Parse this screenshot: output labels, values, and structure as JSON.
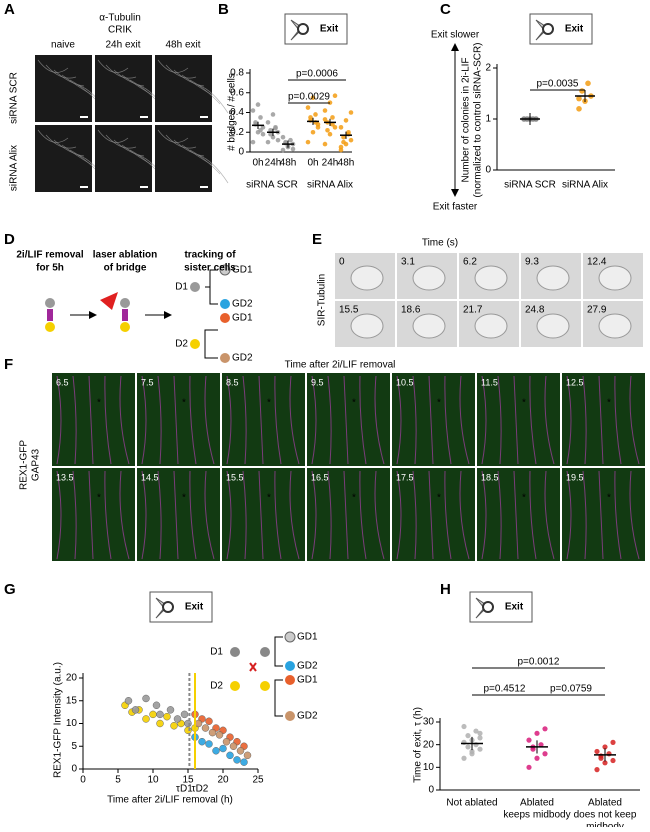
{
  "A": {
    "label": "A",
    "stains": [
      "α-Tubulin",
      "CRIK"
    ],
    "columns": [
      "naive",
      "24h exit",
      "48h exit"
    ],
    "rows": [
      "siRNA SCR",
      "siRNA Alix"
    ]
  },
  "B": {
    "label": "B",
    "icon": "Exit",
    "ylabel": "# bridges / # cells",
    "ylim": [
      0,
      0.8
    ],
    "yticks": [
      0,
      0.2,
      0.4,
      0.6,
      0.8
    ],
    "categories": [
      "0h",
      "24h",
      "48h",
      "0h",
      "24h",
      "48h"
    ],
    "groups": [
      "siRNA SCR",
      "siRNA Alix"
    ],
    "colors": [
      "#9a9a9a",
      "#9a9a9a",
      "#9a9a9a",
      "#f39c12",
      "#f39c12",
      "#f39c12"
    ],
    "points": [
      [
        0.1,
        0.2,
        0.25,
        0.3,
        0.35,
        0.42,
        0.48,
        0.18,
        0.28,
        0.22
      ],
      [
        0.1,
        0.15,
        0.2,
        0.22,
        0.25,
        0.3,
        0.38,
        0.12,
        0.18,
        0.24
      ],
      [
        0.02,
        0.05,
        0.08,
        0.1,
        0.12,
        0.15,
        0.06,
        0.03,
        0.09
      ],
      [
        0.1,
        0.2,
        0.28,
        0.32,
        0.38,
        0.45,
        0.55,
        0.25,
        0.35,
        0.3
      ],
      [
        0.08,
        0.18,
        0.25,
        0.3,
        0.35,
        0.42,
        0.5,
        0.57,
        0.22,
        0.28,
        0.33
      ],
      [
        0.02,
        0.08,
        0.12,
        0.15,
        0.2,
        0.25,
        0.32,
        0.4,
        0.1,
        0.18,
        0.05
      ]
    ],
    "means": [
      0.27,
      0.2,
      0.08,
      0.31,
      0.3,
      0.17
    ],
    "pvalues": [
      "p=0.0029",
      "p=0.0006"
    ]
  },
  "C": {
    "label": "C",
    "icon": "Exit",
    "top": "Exit slower",
    "bottom": "Exit faster",
    "ylabel": [
      "Number of colonies in 2i-LIF",
      "(normalized to control siRNA-SCR)"
    ],
    "ylim": [
      0,
      2
    ],
    "yticks": [
      0,
      1,
      2
    ],
    "categories": [
      "siRNA SCR",
      "siRNA Alix"
    ],
    "colors": [
      "#777777",
      "#f39c12"
    ],
    "points": [
      [
        1,
        1,
        1,
        1,
        1
      ],
      [
        1.2,
        1.35,
        1.45,
        1.55,
        1.7,
        1.4
      ]
    ],
    "means": [
      1,
      1.45
    ],
    "pvalues": [
      "p=0.0035"
    ]
  },
  "D": {
    "label": "D",
    "steps": [
      [
        "2i/LIF removal",
        "for 5h"
      ],
      [
        "laser ablation",
        "of bridge"
      ],
      [
        "tracking of",
        "sister cells"
      ]
    ],
    "tree": [
      "D1",
      "GD1",
      "GD2",
      "GD1",
      "D2",
      "GD2"
    ]
  },
  "E": {
    "label": "E",
    "title": "Time (s)",
    "side": "SIR-Tubulin",
    "times": [
      "0",
      "3.1",
      "6.2",
      "9.3",
      "12.4",
      "15.5",
      "18.6",
      "21.7",
      "24.8",
      "27.9"
    ]
  },
  "F": {
    "label": "F",
    "title": "Time after 2i/LIF removal",
    "side": [
      "REX1-GFP",
      "GAP43"
    ],
    "times": [
      "6.5",
      "7.5",
      "8.5",
      "9.5",
      "10.5",
      "11.5",
      "12.5",
      "13.5",
      "14.5",
      "15.5",
      "16.5",
      "17.5",
      "18.5",
      "19.5"
    ]
  },
  "G": {
    "label": "G",
    "icon": "Exit",
    "tree": [
      "D1",
      "GD1",
      "GD2",
      "GD1",
      "D2",
      "GD2"
    ],
    "ylabel": "REX1-GFP Intensity (a.u.)",
    "xlabel": "Time after 2i/LIF removal (h)",
    "xlim": [
      0,
      25
    ],
    "ylim": [
      0,
      20
    ],
    "xticks": [
      0,
      5,
      10,
      15,
      20,
      25
    ],
    "yticks": [
      0,
      5,
      10,
      15,
      20
    ],
    "markers": [
      {
        "label": "τD1",
        "value": 15.2,
        "color": "#888888"
      },
      {
        "label": "τD2",
        "value": 16,
        "color": "#f5d000"
      }
    ],
    "series": [
      {
        "color": "#f5d000",
        "x": [
          6,
          7,
          8,
          9,
          10,
          11,
          12,
          13,
          14,
          15,
          16
        ],
        "values": [
          14,
          12.5,
          13,
          11,
          12,
          10,
          11.5,
          9.5,
          10,
          8.5,
          9
        ]
      },
      {
        "color": "#9a9a9a",
        "x": [
          6.5,
          7.5,
          9,
          10.5,
          11,
          12.5,
          13.5,
          14.5,
          15
        ],
        "values": [
          15,
          13,
          15.5,
          14,
          12,
          13,
          11,
          12,
          10
        ]
      },
      {
        "color": "#29a3e0",
        "x": [
          16,
          17,
          18,
          19,
          20,
          21,
          22,
          23
        ],
        "values": [
          7,
          6,
          5.5,
          4,
          4.5,
          3,
          2,
          1.5
        ]
      },
      {
        "color": "#e8602c",
        "x": [
          16,
          17,
          18,
          19,
          20,
          21,
          22,
          23
        ],
        "values": [
          12,
          11,
          10.5,
          9,
          8.5,
          7,
          6,
          5
        ]
      },
      {
        "color": "#c9946a",
        "x": [
          16.5,
          17.5,
          18.5,
          19.5,
          20.5,
          21.5,
          22.5,
          23.5
        ],
        "values": [
          10,
          9,
          8,
          7.5,
          6,
          5,
          4,
          3
        ]
      }
    ]
  },
  "H": {
    "label": "H",
    "icon": "Exit",
    "ylabel": "Time of exit, τ (h)",
    "ylim": [
      0,
      30
    ],
    "yticks": [
      0,
      10,
      20,
      30
    ],
    "categories": [
      [
        "Not ablated"
      ],
      [
        "Ablated",
        "keeps midbody"
      ],
      [
        "Ablated",
        "does not keep",
        "midbody"
      ]
    ],
    "colors": [
      "#b0b0b0",
      "#d81b7a",
      "#d62020"
    ],
    "points": [
      [
        14,
        16,
        18,
        19,
        20,
        21,
        22,
        23,
        24,
        26,
        28,
        17,
        25
      ],
      [
        10,
        14,
        16,
        18,
        20,
        22,
        25,
        27,
        19
      ],
      [
        9,
        12,
        13,
        15,
        16,
        17,
        19,
        21,
        14
      ]
    ],
    "means": [
      20.5,
      19,
      15.5
    ],
    "pvalues": [
      "p=0.0012",
      "p=0.4512",
      "p=0.0759"
    ]
  }
}
